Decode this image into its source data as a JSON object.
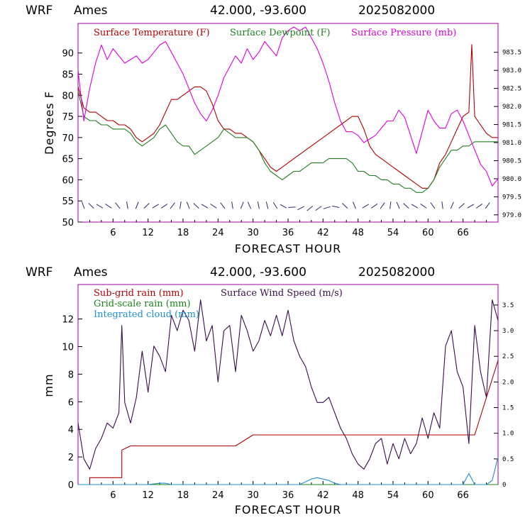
{
  "colors": {
    "temperature": "#b00000",
    "dewpoint": "#208020",
    "pressure": "#dd00dd",
    "subgrid": "#b00000",
    "gridscale": "#208020",
    "cloud": "#1f8fd0",
    "wind": "#3a0f4a",
    "frame": "#a000a0"
  },
  "top_header": {
    "model": "WRF",
    "station": "Ames",
    "coords": "42.000, -93.600",
    "run": "2025082000"
  },
  "bottom_header": {
    "model": "WRF",
    "station": "Ames",
    "coords": "42.000, -93.600",
    "run": "2025082000"
  },
  "chart_data": [
    {
      "type": "line",
      "xlabel": "FORECAST HOUR",
      "ylabel": "Degrees F",
      "xlim": [
        0,
        72
      ],
      "ylim": [
        50,
        97
      ],
      "y2lim": [
        978.8,
        984.3
      ],
      "x_ticks": [
        "6",
        "12",
        "18",
        "24",
        "30",
        "36",
        "42",
        "48",
        "54",
        "60",
        "66"
      ],
      "y_ticks": [
        "50",
        "55",
        "60",
        "65",
        "70",
        "75",
        "80",
        "85",
        "90"
      ],
      "y2_ticks": [
        "979.0",
        "979.5",
        "980.0",
        "980.5",
        "981.0",
        "981.5",
        "982.0",
        "982.5",
        "983.0",
        "983.5"
      ],
      "legend": [
        "Surface Temperature (F)",
        "Surface Dewpoint (F)",
        "Surface Pressure (mb)"
      ],
      "legend_position": "top",
      "series": [
        {
          "name": "Surface Temperature (F)",
          "axis": "left",
          "color_key": "temperature",
          "x": [
            0,
            1,
            2,
            3,
            4,
            5,
            6,
            7,
            8,
            9,
            10,
            11,
            12,
            13,
            14,
            15,
            16,
            17,
            18,
            19,
            20,
            21,
            22,
            23,
            24,
            25,
            26,
            27,
            28,
            29,
            30,
            31,
            32,
            33,
            34,
            35,
            36,
            37,
            38,
            39,
            40,
            41,
            42,
            43,
            44,
            45,
            46,
            47,
            48,
            49,
            50,
            51,
            52,
            53,
            54,
            55,
            56,
            57,
            58,
            59,
            60,
            61,
            62,
            63,
            64,
            65,
            66,
            67,
            67.5,
            68,
            69,
            70,
            71,
            72
          ],
          "y": [
            82,
            77,
            76,
            76,
            75,
            74,
            74,
            73,
            73,
            72,
            70,
            69,
            70,
            71,
            73,
            76,
            79,
            79,
            80,
            81,
            82,
            82,
            81,
            78,
            74,
            72,
            72,
            71,
            71,
            70,
            69,
            67,
            65,
            63,
            62,
            63,
            64,
            65,
            66,
            67,
            68,
            69,
            70,
            71,
            72,
            73,
            74,
            75,
            75,
            72,
            68,
            66,
            65,
            64,
            63,
            62,
            61,
            60,
            59,
            58,
            58,
            60,
            64,
            66,
            69,
            72,
            75,
            76,
            92,
            75,
            73,
            71,
            70,
            70
          ]
        },
        {
          "name": "Surface Dewpoint (F)",
          "axis": "left",
          "color_key": "dewpoint",
          "x": [
            0,
            1,
            2,
            3,
            4,
            5,
            6,
            7,
            8,
            9,
            10,
            11,
            12,
            13,
            14,
            15,
            16,
            17,
            18,
            19,
            20,
            21,
            22,
            23,
            24,
            25,
            26,
            27,
            28,
            29,
            30,
            31,
            32,
            33,
            34,
            35,
            36,
            37,
            38,
            39,
            40,
            41,
            42,
            43,
            44,
            45,
            46,
            47,
            48,
            49,
            50,
            51,
            52,
            53,
            54,
            55,
            56,
            57,
            58,
            59,
            60,
            61,
            62,
            63,
            64,
            65,
            66,
            67,
            68,
            69,
            70,
            71,
            72
          ],
          "y": [
            81,
            75,
            74,
            74,
            73,
            73,
            72,
            72,
            72,
            71,
            69,
            68,
            69,
            70,
            72,
            73,
            71,
            69,
            68,
            68,
            66,
            67,
            68,
            69,
            70,
            72,
            71,
            70,
            70,
            70,
            69,
            67,
            64,
            62,
            61,
            60,
            61,
            62,
            62,
            63,
            64,
            64,
            64,
            65,
            65,
            65,
            65,
            64,
            62,
            62,
            61,
            61,
            60,
            60,
            59,
            59,
            58,
            58,
            57,
            57,
            58,
            60,
            63,
            65,
            67,
            67,
            68,
            68,
            69,
            69,
            69,
            69,
            69
          ]
        },
        {
          "name": "Surface Pressure (mb)",
          "axis": "right",
          "color_key": "pressure",
          "x": [
            0,
            1,
            2,
            3,
            4,
            5,
            6,
            7,
            8,
            9,
            10,
            11,
            12,
            13,
            14,
            15,
            16,
            17,
            18,
            19,
            20,
            21,
            22,
            23,
            24,
            25,
            26,
            27,
            28,
            29,
            30,
            31,
            32,
            33,
            34,
            35,
            36,
            37,
            38,
            39,
            40,
            41,
            42,
            43,
            44,
            45,
            46,
            47,
            48,
            49,
            50,
            51,
            52,
            53,
            54,
            55,
            56,
            57,
            58,
            59,
            60,
            61,
            62,
            63,
            64,
            65,
            66,
            67,
            68,
            69,
            70,
            71,
            72
          ],
          "y": [
            983.0,
            981.6,
            982.5,
            983.2,
            983.7,
            983.3,
            983.6,
            983.4,
            983.2,
            983.3,
            983.4,
            983.2,
            983.3,
            983.5,
            983.7,
            983.8,
            983.5,
            983.2,
            982.9,
            982.5,
            982.1,
            981.8,
            981.6,
            981.9,
            982.3,
            982.8,
            983.1,
            983.4,
            983.2,
            983.6,
            983.3,
            983.5,
            983.8,
            983.6,
            983.4,
            983.9,
            984.1,
            984.2,
            984.1,
            984.2,
            983.9,
            983.6,
            983.2,
            982.7,
            982.1,
            981.6,
            981.3,
            981.3,
            981.2,
            981.0,
            981.1,
            981.2,
            981.4,
            981.6,
            981.6,
            981.9,
            981.7,
            981.2,
            980.7,
            981.3,
            981.9,
            981.6,
            981.4,
            981.4,
            981.8,
            981.9,
            981.6,
            981.2,
            980.8,
            980.4,
            980.2,
            979.8,
            980.0
          ]
        }
      ]
    },
    {
      "type": "line",
      "xlabel": "FORECAST HOUR",
      "ylabel": "mm",
      "xlim": [
        0,
        72
      ],
      "ylim": [
        0,
        14.5
      ],
      "y2lim": [
        0,
        3.9
      ],
      "x_ticks": [
        "6",
        "12",
        "18",
        "24",
        "30",
        "36",
        "42",
        "48",
        "54",
        "60",
        "66"
      ],
      "y_ticks": [
        "0",
        "2",
        "4",
        "6",
        "8",
        "10",
        "12"
      ],
      "y2_ticks": [
        "0",
        "0.5",
        "1.0",
        "1.5",
        "2.0",
        "2.5",
        "3.0",
        "3.5"
      ],
      "legend": [
        "Sub-grid rain (mm)",
        "Grid-scale rain (mm)",
        "Integrated cloud (mm)",
        "Surface Wind Speed (m/s)"
      ],
      "legend_position": "top-left",
      "series": [
        {
          "name": "Sub-grid rain (mm)",
          "axis": "left",
          "color_key": "subgrid",
          "x": [
            0,
            2,
            2,
            7.5,
            7.5,
            9,
            27,
            30,
            66,
            68,
            72
          ],
          "y": [
            0,
            0,
            0.5,
            0.5,
            2.5,
            2.8,
            2.8,
            3.6,
            3.6,
            3.6,
            9
          ]
        },
        {
          "name": "Grid-scale rain (mm)",
          "axis": "left",
          "color_key": "gridscale",
          "x": [
            0,
            72
          ],
          "y": [
            0,
            0
          ]
        },
        {
          "name": "Integrated cloud (mm)",
          "axis": "left",
          "color_key": "cloud",
          "x": [
            0,
            12,
            14,
            15,
            16,
            30,
            38,
            39,
            40,
            41,
            42,
            43,
            44,
            45,
            66,
            67,
            68,
            70,
            71,
            72
          ],
          "y": [
            0,
            0,
            0.1,
            0.1,
            0,
            0,
            0,
            0.2,
            0.4,
            0.5,
            0.4,
            0.3,
            0.1,
            0,
            0,
            0.8,
            0,
            0,
            0.3,
            2.0
          ]
        },
        {
          "name": "Surface Wind Speed (m/s)",
          "axis": "right",
          "color_key": "wind",
          "x": [
            0,
            1,
            2,
            3,
            4,
            5,
            6,
            7,
            7.5,
            8,
            9,
            10,
            11,
            12,
            13,
            14,
            15,
            16,
            17,
            18,
            19,
            20,
            21,
            22,
            23,
            24,
            25,
            26,
            27,
            28,
            29,
            30,
            31,
            32,
            33,
            34,
            35,
            36,
            37,
            38,
            39,
            40,
            41,
            42,
            43,
            44,
            45,
            46,
            47,
            48,
            49,
            50,
            51,
            52,
            53,
            54,
            55,
            56,
            57,
            58,
            59,
            60,
            61,
            62,
            63,
            64,
            65,
            66,
            67,
            68,
            69,
            70,
            71,
            72
          ],
          "y": [
            1.2,
            0.5,
            0.3,
            0.7,
            0.9,
            1.2,
            1.1,
            1.4,
            3.1,
            1.6,
            1.2,
            1.7,
            2.6,
            1.8,
            2.7,
            2.5,
            2.2,
            3.3,
            3.0,
            3.4,
            3.2,
            2.6,
            3.6,
            2.8,
            3.1,
            2.0,
            3.0,
            3.1,
            2.2,
            3.3,
            3.0,
            2.6,
            2.8,
            3.2,
            2.9,
            3.3,
            2.9,
            3.4,
            2.8,
            2.5,
            2.3,
            1.9,
            1.6,
            1.6,
            1.7,
            1.4,
            1.1,
            0.9,
            0.6,
            0.4,
            0.3,
            0.5,
            0.8,
            0.9,
            0.4,
            0.8,
            0.5,
            0.9,
            0.6,
            0.8,
            1.3,
            0.9,
            1.4,
            1.1,
            2.7,
            3.0,
            2.2,
            1.9,
            0.8,
            3.1,
            2.2,
            1.7,
            3.6,
            3.2
          ]
        }
      ]
    }
  ]
}
